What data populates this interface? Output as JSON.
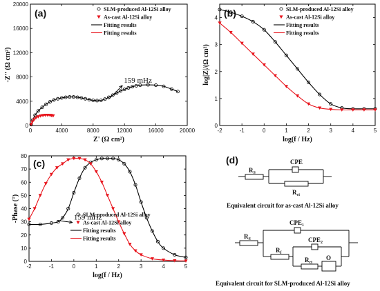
{
  "chart_data": [
    {
      "panel": "(a)",
      "type": "scatter",
      "xlabel": "Z' (Ω cm²)",
      "ylabel": "-Z'' (Ω cm²)",
      "xlim": [
        0,
        20000
      ],
      "ylim": [
        0,
        20000
      ],
      "xticks": [
        0,
        4000,
        8000,
        12000,
        16000,
        20000
      ],
      "yticks": [
        0,
        4000,
        8000,
        12000,
        16000,
        20000
      ],
      "annotation": "159 mHz",
      "annotation_point": [
        9800,
        4100
      ],
      "legend_position": "top-right",
      "series": [
        {
          "name": "SLM-produced Al-12Si alloy",
          "style": "open-circle",
          "color": "#000000",
          "x": [
            100,
            300,
            600,
            1000,
            1500,
            2000,
            2500,
            3000,
            3500,
            4000,
            4500,
            5000,
            5500,
            6000,
            6500,
            7000,
            7500,
            8000,
            8500,
            9000,
            9500,
            10000,
            10500,
            11000,
            11500,
            12000,
            12500,
            13000,
            13500,
            14000,
            15000,
            16000,
            17000,
            18000,
            18800
          ],
          "y": [
            150,
            900,
            1700,
            2400,
            3000,
            3500,
            3900,
            4200,
            4400,
            4550,
            4650,
            4700,
            4700,
            4650,
            4550,
            4400,
            4250,
            4150,
            4100,
            4150,
            4350,
            4650,
            5000,
            5350,
            5700,
            5950,
            6200,
            6400,
            6550,
            6650,
            6700,
            6650,
            6450,
            6000,
            5600
          ]
        },
        {
          "name": "As-cast Al-12Si alloy",
          "style": "filled-triangle",
          "color": "#e8141c",
          "x": [
            100,
            250,
            450,
            700,
            1000,
            1300,
            1600,
            1900,
            2200,
            2500,
            2700,
            2900
          ],
          "y": [
            200,
            600,
            950,
            1250,
            1450,
            1580,
            1650,
            1700,
            1700,
            1680,
            1650,
            1600
          ]
        },
        {
          "name": "Fitting results",
          "style": "line",
          "color": "#000000",
          "fit_of": "SLM-produced Al-12Si alloy"
        },
        {
          "name": "Fitting results",
          "style": "line",
          "color": "#e8141c",
          "fit_of": "As-cast Al-12Si alloy"
        }
      ]
    },
    {
      "panel": "(b)",
      "type": "line",
      "xlabel": "log(f / Hz)",
      "ylabel": "log|Z|/(Ω cm²)",
      "xlim": [
        -2,
        5
      ],
      "ylim": [
        0,
        4.5
      ],
      "xticks": [
        -2,
        -1,
        0,
        1,
        2,
        3,
        4,
        5
      ],
      "yticks": [
        0,
        1,
        2,
        3,
        4
      ],
      "legend_position": "top-right",
      "series": [
        {
          "name": "SLM-produced Al-12Si alloy",
          "style": "open-circle",
          "color": "#000000",
          "x": [
            -2,
            -1.5,
            -1,
            -0.5,
            0,
            0.5,
            1,
            1.5,
            2,
            2.5,
            3,
            3.5,
            4,
            4.5,
            5
          ],
          "y": [
            4.3,
            4.2,
            4.05,
            3.85,
            3.55,
            3.1,
            2.6,
            2.1,
            1.6,
            1.15,
            0.8,
            0.65,
            0.62,
            0.62,
            0.62
          ]
        },
        {
          "name": "As-cast Al-12Si alloy",
          "style": "filled-triangle",
          "color": "#e8141c",
          "x": [
            -2,
            -1.5,
            -1,
            -0.5,
            0,
            0.5,
            1,
            1.5,
            2,
            2.5,
            3,
            3.5,
            4,
            4.5,
            5
          ],
          "y": [
            3.8,
            3.45,
            3.05,
            2.65,
            2.25,
            1.85,
            1.45,
            1.1,
            0.8,
            0.65,
            0.6,
            0.58,
            0.58,
            0.58,
            0.58
          ]
        },
        {
          "name": "Fitting results",
          "style": "line",
          "color": "#000000",
          "fit_of": "SLM-produced Al-12Si alloy"
        },
        {
          "name": "Fitting results",
          "style": "line",
          "color": "#e8141c",
          "fit_of": "As-cast Al-12Si alloy"
        }
      ]
    },
    {
      "panel": "(c)",
      "type": "line",
      "xlabel": "log(f / Hz)",
      "ylabel": "-Phase (°)",
      "xlim": [
        -2,
        5
      ],
      "ylim": [
        0,
        80
      ],
      "xticks": [
        -2,
        -1,
        0,
        1,
        2,
        3,
        4,
        5
      ],
      "yticks": [
        0,
        10,
        20,
        30,
        40,
        50,
        60,
        70,
        80
      ],
      "annotation": "159 mHz",
      "annotation_point": [
        -0.8,
        30
      ],
      "legend_position": "bottom-right",
      "series": [
        {
          "name": "SLM-produced Al-12Si alloy",
          "style": "open-circle",
          "color": "#000000",
          "x": [
            -2,
            -1.5,
            -1,
            -0.7,
            -0.5,
            -0.25,
            0,
            0.25,
            0.5,
            0.75,
            1,
            1.25,
            1.5,
            1.75,
            2,
            2.25,
            2.5,
            2.75,
            3,
            3.25,
            3.5,
            3.75,
            4,
            4.5,
            5
          ],
          "y": [
            28,
            28,
            29,
            30,
            33,
            40,
            52,
            63,
            71,
            75,
            77,
            78,
            78,
            78,
            77,
            74,
            68,
            58,
            45,
            33,
            23,
            15,
            10,
            5,
            3
          ]
        },
        {
          "name": "As-cast Al-12Si alloy",
          "style": "filled-triangle",
          "color": "#e8141c",
          "x": [
            -2,
            -1.75,
            -1.5,
            -1.25,
            -1,
            -0.75,
            -0.5,
            -0.25,
            0,
            0.25,
            0.5,
            0.75,
            1,
            1.25,
            1.5,
            1.75,
            2,
            2.25,
            2.5,
            2.75,
            3,
            3.5,
            4,
            4.5,
            5
          ],
          "y": [
            32,
            40,
            50,
            59,
            66,
            71,
            74,
            77,
            78,
            78,
            77,
            74,
            68,
            60,
            50,
            40,
            30,
            21,
            13,
            8,
            5,
            2,
            1,
            0.5,
            0.3
          ]
        },
        {
          "name": "Fitting results",
          "style": "line",
          "color": "#000000",
          "fit_of": "SLM-produced Al-12Si alloy"
        },
        {
          "name": "Fitting results",
          "style": "line",
          "color": "#e8141c",
          "fit_of": "As-cast Al-12Si alloy"
        }
      ]
    }
  ],
  "panels": {
    "a": "(a)",
    "b": "(b)",
    "c": "(c)",
    "d": "(d)"
  },
  "circuits": {
    "ascast": {
      "rs_label": "R",
      "rs_sub": "S",
      "cpe_label": "CPE",
      "rct_label": "R",
      "rct_sub": "ct",
      "caption": "Equivalent circuit for as-cast Al-12Si alloy"
    },
    "slm": {
      "rs_label": "R",
      "rs_sub": "S",
      "cpe1_label": "CPE",
      "cpe1_sub": "1",
      "rf_label": "R",
      "rf_sub": "f",
      "cpe2_label": "CPE",
      "cpe2_sub": "2",
      "rct_label": "R",
      "rct_sub": "ct",
      "o_label": "O",
      "caption": "Equivalent circuit for SLM-produced Al-12Si alloy"
    }
  }
}
